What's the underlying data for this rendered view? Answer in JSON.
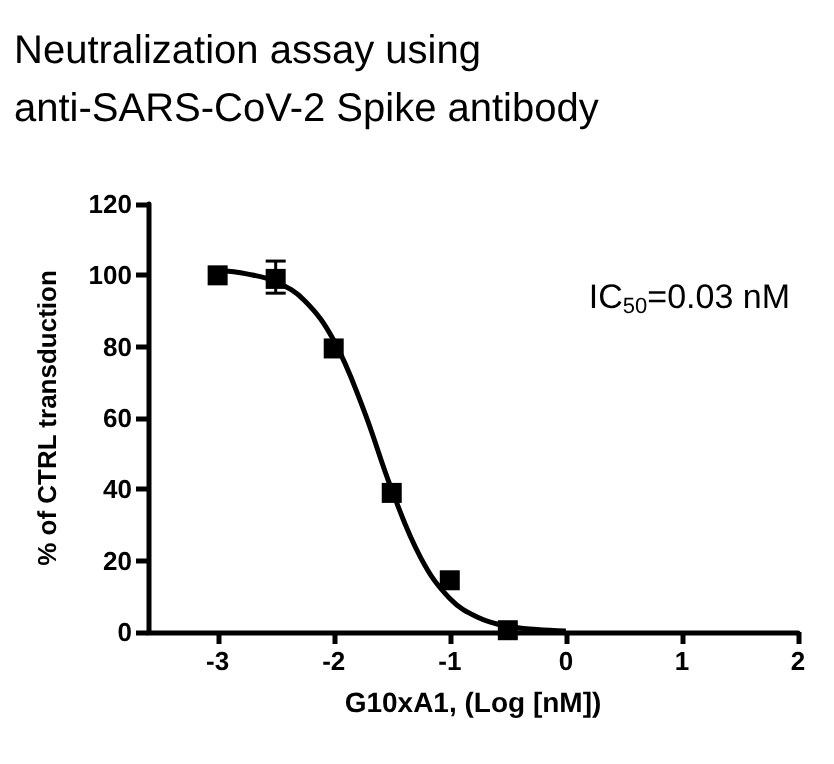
{
  "chart_data": {
    "type": "scatter",
    "title": "Neutralization assay using\nanti-SARS-CoV-2 Spike antibody",
    "xlabel": "G10xA1, (Log [nM])",
    "ylabel": "% of CTRL transduction",
    "annotations": [
      "IC$_{50}$=0.03 nM"
    ],
    "xlim": [
      -3.6,
      2
    ],
    "xticks": [
      -3,
      -2,
      -1,
      0,
      1,
      2
    ],
    "ylim": [
      0,
      120
    ],
    "yticks": [
      0,
      20,
      40,
      60,
      80,
      100,
      120
    ],
    "grid": false,
    "series": [
      {
        "color": "#000000",
        "marker": "square",
        "x": [
          -3,
          -2.5,
          -2,
          -1.5,
          -1,
          -0.5
        ],
        "values": [
          100,
          99,
          79.5,
          39,
          14.5,
          0.5
        ],
        "errors": [
          null,
          [
            95,
            104
          ],
          null,
          null,
          null,
          null
        ]
      },
      {
        "type": "line",
        "color": "#000000",
        "marker": "none",
        "line_style": "solid",
        "x": [
          -3,
          -2.75,
          -2.5,
          -2.25,
          -2,
          -1.75,
          -1.5,
          -1.25,
          -1,
          -0.75,
          -0.5,
          -0.25,
          0
        ],
        "values": [
          101.4,
          100.4,
          98.2,
          92.9,
          81.8,
          63.0,
          39.9,
          20.8,
          9.4,
          4.0,
          1.6,
          0.7,
          0.3
        ]
      }
    ]
  }
}
